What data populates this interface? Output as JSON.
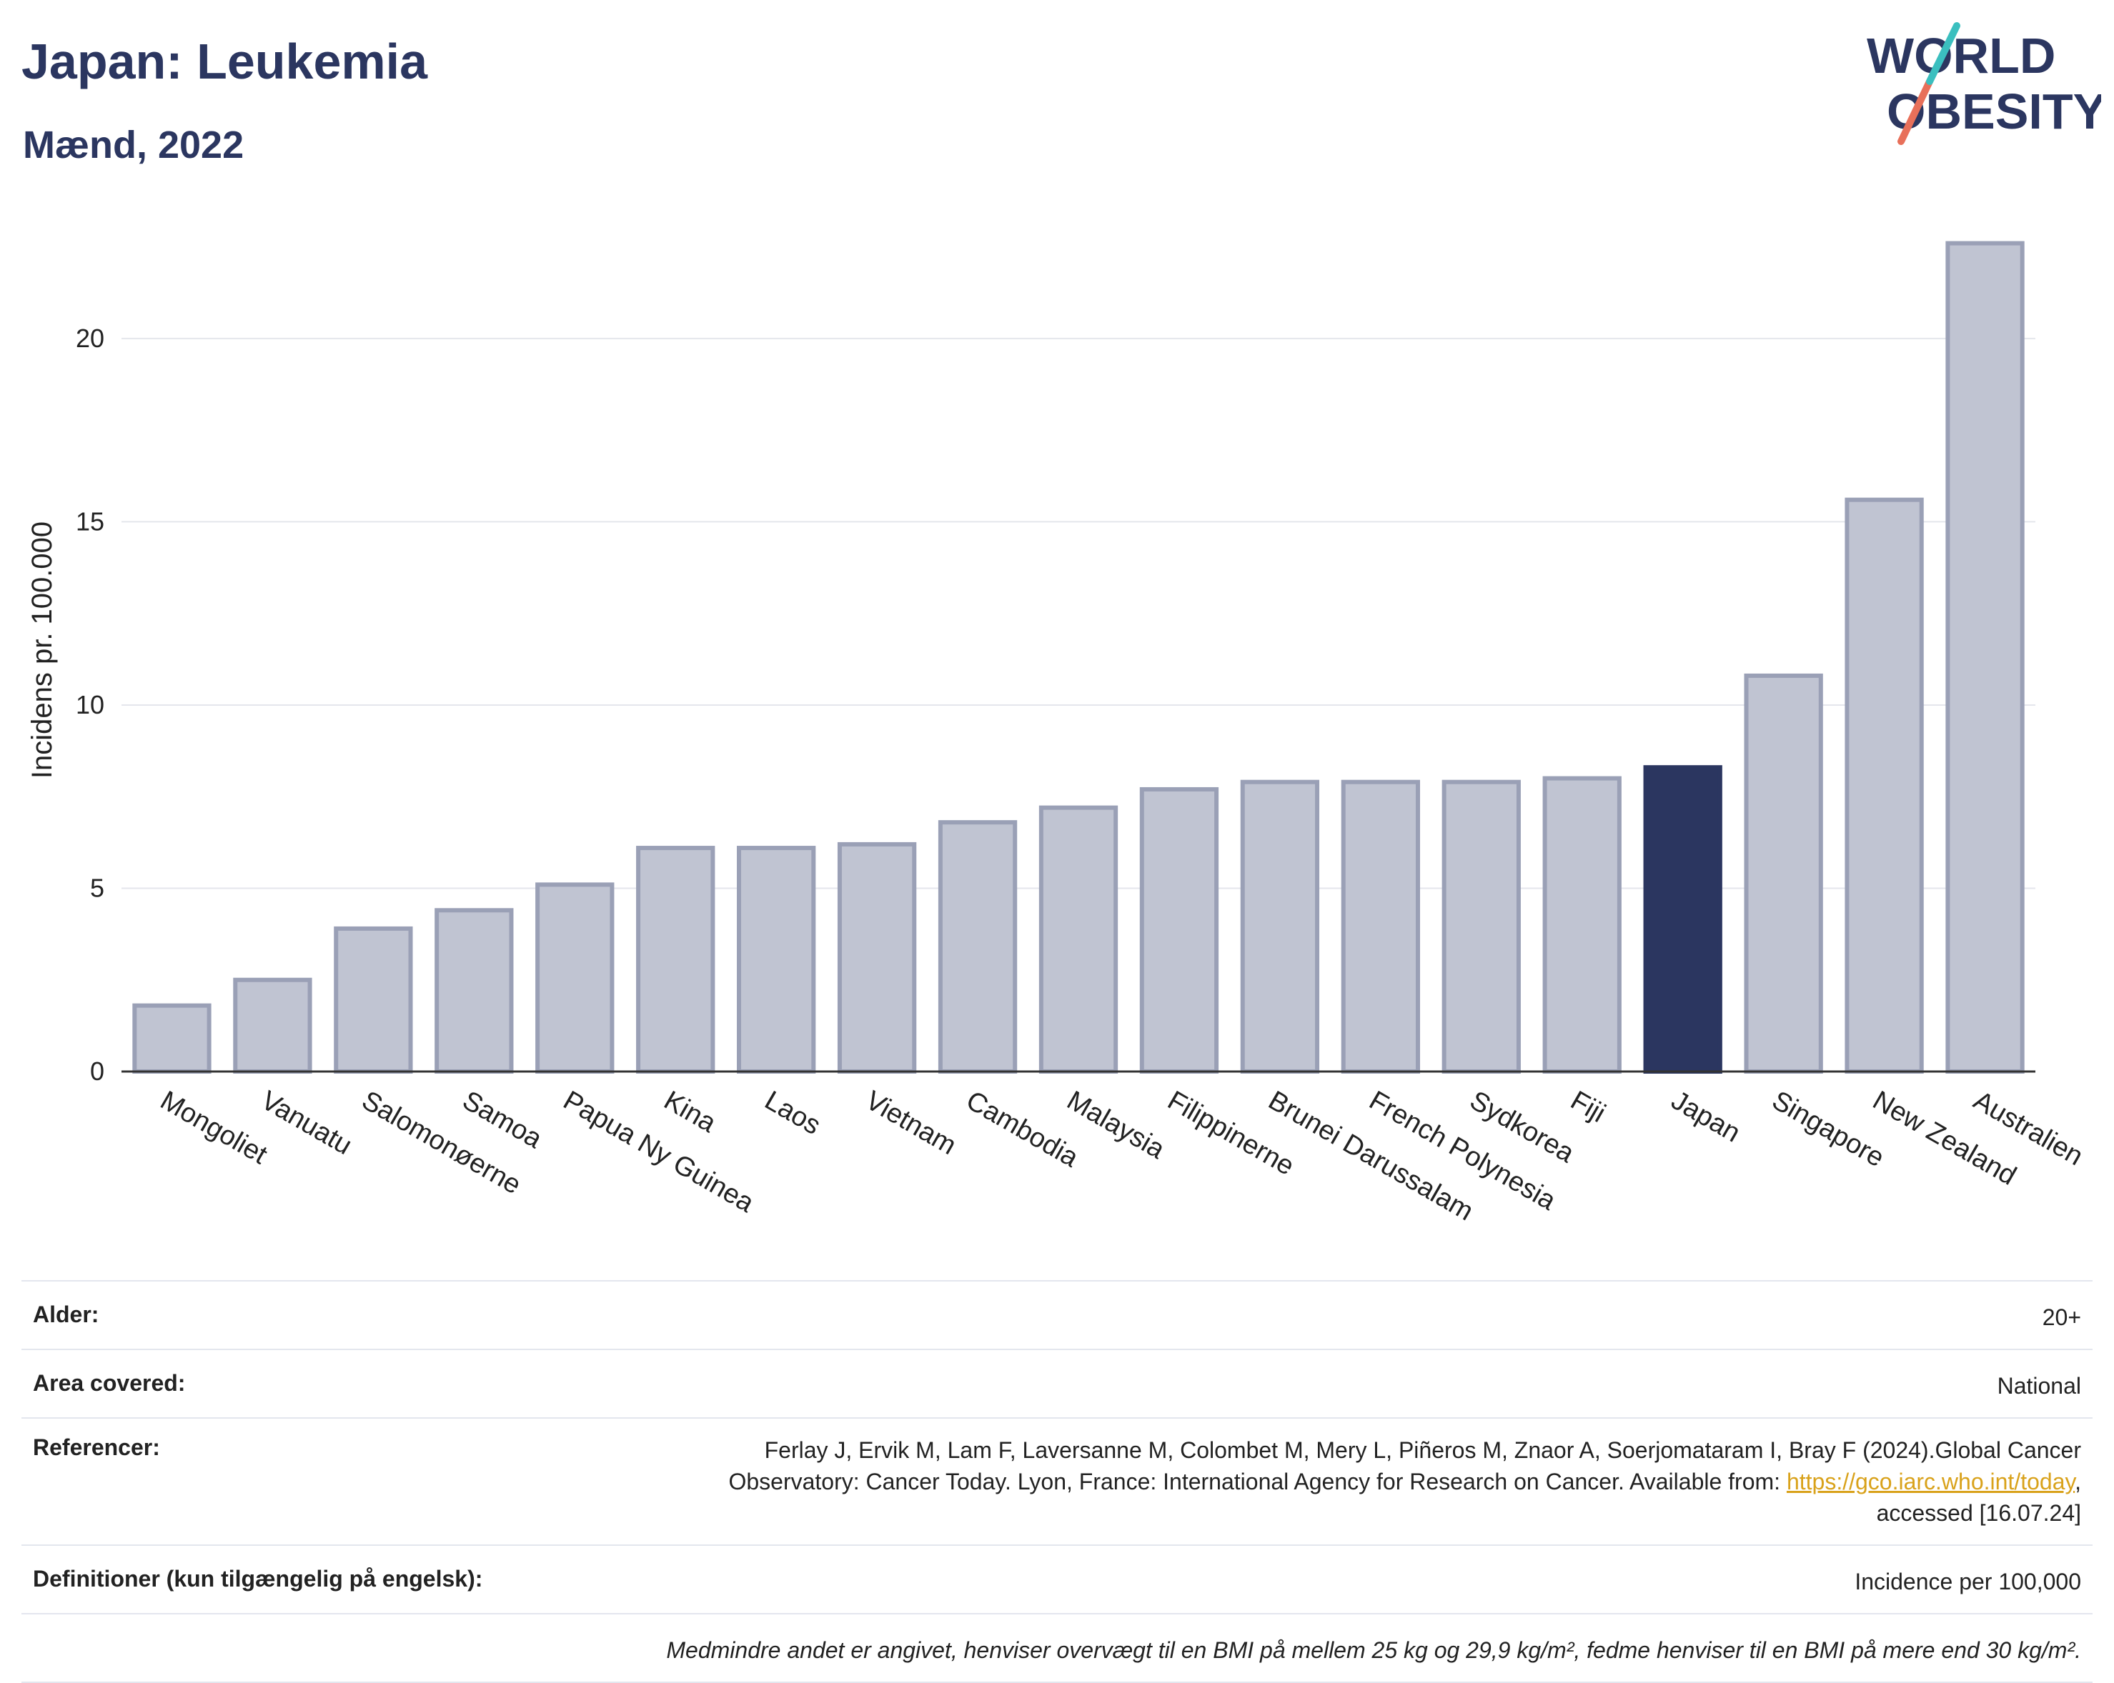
{
  "header": {
    "title": "Japan: Leukemia",
    "subtitle": "Mænd, 2022"
  },
  "logo": {
    "line1": "WORLD",
    "line2": "OBESITY",
    "accent_colors": [
      "#3bbfbf",
      "#e8705a"
    ]
  },
  "chart_data": {
    "type": "bar",
    "title": "Japan: Leukemia",
    "subtitle": "Mænd, 2022",
    "xlabel": "",
    "ylabel": "Incidens pr. 100.000",
    "ylim": [
      0,
      23
    ],
    "yticks": [
      0,
      5,
      10,
      15,
      20
    ],
    "grid": true,
    "highlight": "Japan",
    "colors": {
      "bar": "#c0c4d2",
      "bar_border": "#9aa0b6",
      "highlight": "#2b3660"
    },
    "categories": [
      "Mongoliet",
      "Vanuatu",
      "Salomonøerne",
      "Samoa",
      "Papua Ny Guinea",
      "Kina",
      "Laos",
      "Vietnam",
      "Cambodia",
      "Malaysia",
      "Filippinerne",
      "Brunei Darussalam",
      "French Polynesia",
      "Sydkorea",
      "Fiji",
      "Japan",
      "Singapore",
      "New Zealand",
      "Australien"
    ],
    "values": [
      1.8,
      2.5,
      3.9,
      4.4,
      5.1,
      6.1,
      6.1,
      6.2,
      6.8,
      7.2,
      7.7,
      7.9,
      7.9,
      7.9,
      8.0,
      8.3,
      10.8,
      15.6,
      22.6
    ]
  },
  "info": {
    "age_label": "Alder:",
    "age_value": "20+",
    "area_label": "Area covered:",
    "area_value": "National",
    "ref_label": "Referencer:",
    "ref_line1": "Ferlay J, Ervik M, Lam F, Laversanne M, Colombet M, Mery L, Piñeros M, Znaor A, Soerjomataram I, Bray F (2024).Global Cancer",
    "ref_line2": "Observatory: Cancer Today. Lyon, France: International Agency for Research on Cancer. Available from: ",
    "ref_link": "https://gco.iarc.who.int/today",
    "ref_line2_end": ",",
    "ref_line3": "accessed [16.07.24]",
    "def_label": "Definitioner (kun tilgængelig på engelsk):",
    "def_value": "Incidence per 100,000",
    "note": "Medmindre andet er angivet, henviser overvægt til en BMI på mellem 25 kg og 29,9 kg/m², fedme henviser til en BMI på mere end 30 kg/m²."
  }
}
